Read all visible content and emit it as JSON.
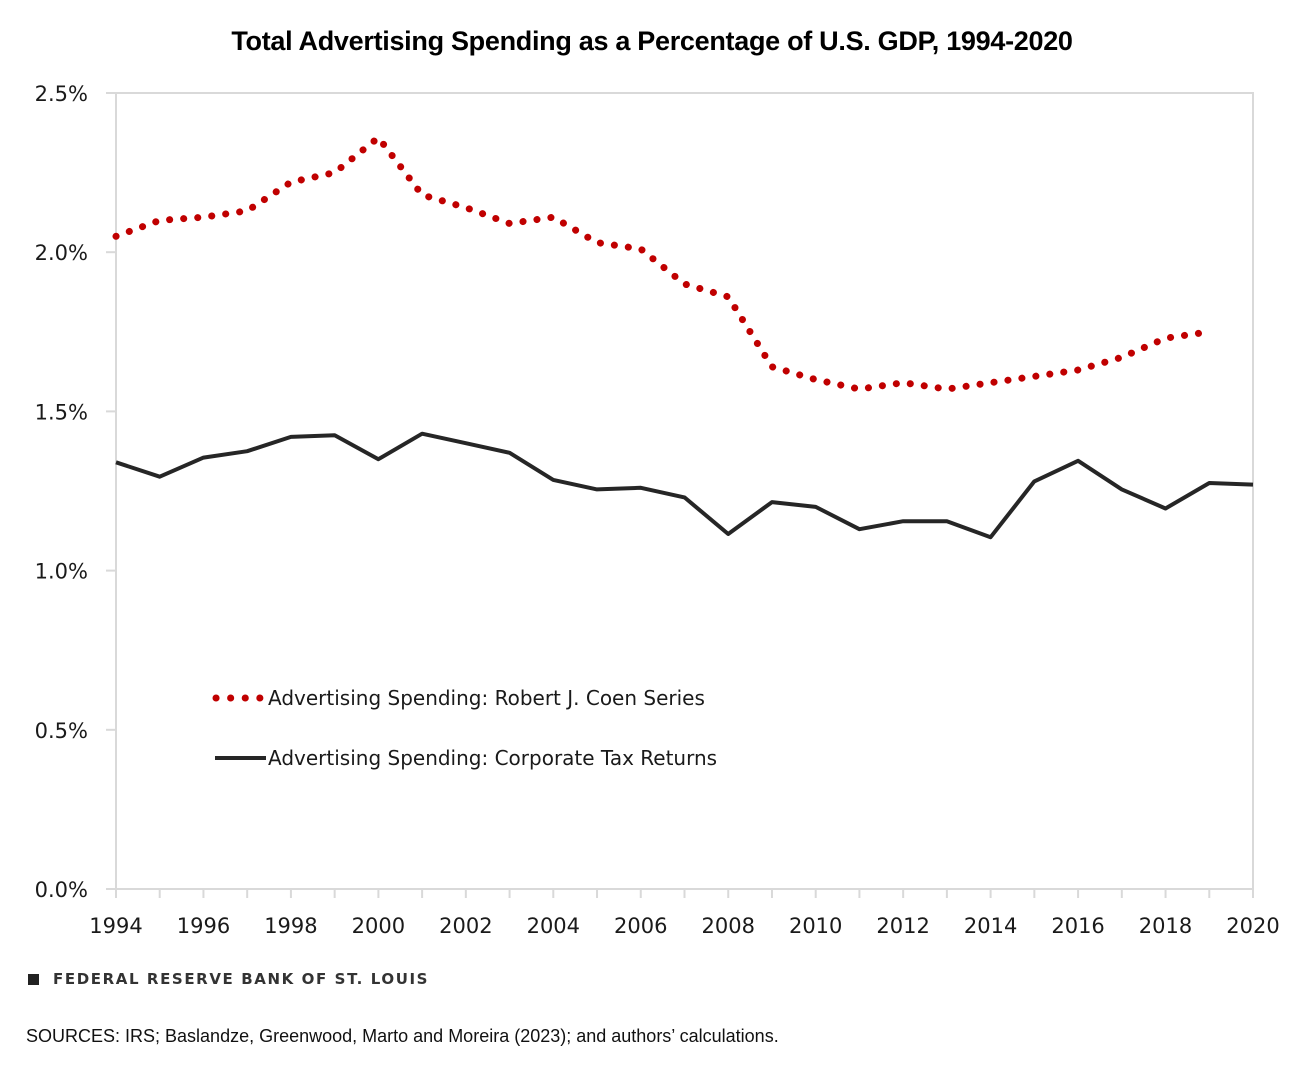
{
  "chart_data": {
    "type": "line",
    "title": "Total Advertising Spending as a Percentage of U.S. GDP, 1994-2020",
    "xlabel": "",
    "ylabel": "",
    "x": [
      1994,
      1995,
      1996,
      1997,
      1998,
      1999,
      2000,
      2001,
      2002,
      2003,
      2004,
      2005,
      2006,
      2007,
      2008,
      2009,
      2010,
      2011,
      2012,
      2013,
      2014,
      2015,
      2016,
      2017,
      2018,
      2019,
      2020
    ],
    "xlim": [
      1994,
      2020
    ],
    "ylim": [
      0,
      2.5
    ],
    "x_ticks": [
      "1994",
      "1996",
      "1998",
      "2000",
      "2002",
      "2004",
      "2006",
      "2008",
      "2010",
      "2012",
      "2014",
      "2016",
      "2018",
      "2020"
    ],
    "y_ticks": [
      {
        "value": 0.0,
        "label": "0.0%"
      },
      {
        "value": 0.5,
        "label": "0.5%"
      },
      {
        "value": 1.0,
        "label": "1.0%"
      },
      {
        "value": 1.5,
        "label": "1.5%"
      },
      {
        "value": 2.0,
        "label": "2.0%"
      },
      {
        "value": 2.5,
        "label": "2.5%"
      }
    ],
    "grid": false,
    "legend_position": "lower-left",
    "series": [
      {
        "name": "Advertising Spending: Robert J. Coen Series",
        "style": "dotted",
        "color": "#c00000",
        "values": [
          2.05,
          2.1,
          2.11,
          2.13,
          2.22,
          2.25,
          2.36,
          2.18,
          2.14,
          2.09,
          2.11,
          2.03,
          2.01,
          1.9,
          1.86,
          1.64,
          1.6,
          1.57,
          1.59,
          1.57,
          1.59,
          1.61,
          1.63,
          1.67,
          1.73,
          1.75,
          null
        ]
      },
      {
        "name": "Advertising Spending: Corporate Tax Returns",
        "style": "solid",
        "color": "#262626",
        "values": [
          1.34,
          1.295,
          1.355,
          1.375,
          1.42,
          1.425,
          1.35,
          1.43,
          1.4,
          1.37,
          1.285,
          1.255,
          1.26,
          1.23,
          1.115,
          1.215,
          1.2,
          1.13,
          1.155,
          1.155,
          1.105,
          1.28,
          1.345,
          1.255,
          1.195,
          1.275,
          1.27
        ]
      }
    ]
  },
  "footer": {
    "brand": "FEDERAL RESERVE BANK OF ST. LOUIS",
    "sources": "SOURCES: IRS; Baslandze, Greenwood, Marto and Moreira (2023); and authors’ calculations."
  }
}
